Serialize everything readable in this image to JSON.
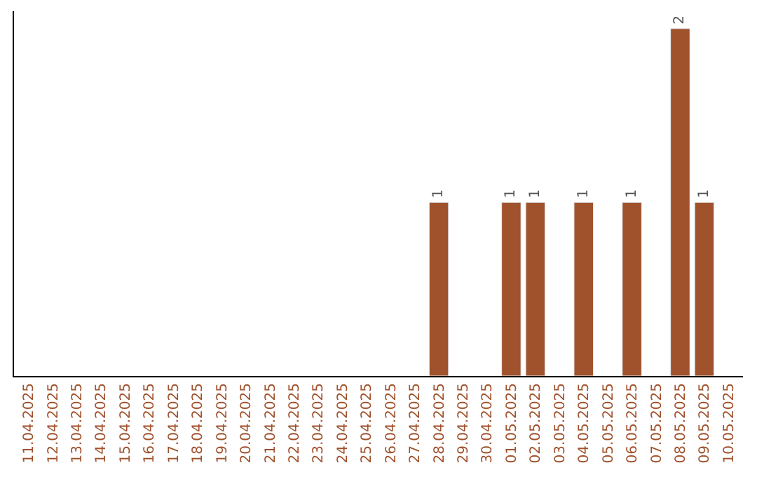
{
  "chart_data": {
    "type": "bar",
    "categories": [
      "11.04.2025",
      "12.04.2025",
      "13.04.2025",
      "14.04.2025",
      "15.04.2025",
      "16.04.2025",
      "17.04.2025",
      "18.04.2025",
      "19.04.2025",
      "20.04.2025",
      "21.04.2025",
      "22.04.2025",
      "23.04.2025",
      "24.04.2025",
      "25.04.2025",
      "26.04.2025",
      "27.04.2025",
      "28.04.2025",
      "29.04.2025",
      "30.04.2025",
      "01.05.2025",
      "02.05.2025",
      "03.05.2025",
      "04.05.2025",
      "05.05.2025",
      "06.05.2025",
      "07.05.2025",
      "08.05.2025",
      "09.05.2025",
      "10.05.2025"
    ],
    "values": [
      null,
      null,
      null,
      null,
      null,
      null,
      null,
      null,
      null,
      null,
      null,
      null,
      null,
      null,
      null,
      null,
      null,
      1,
      null,
      null,
      1,
      1,
      null,
      1,
      null,
      1,
      null,
      2,
      1,
      null
    ],
    "value_labels": [
      null,
      null,
      null,
      null,
      null,
      null,
      null,
      null,
      null,
      null,
      null,
      null,
      null,
      null,
      null,
      null,
      null,
      "1",
      null,
      null,
      "1",
      "1",
      null,
      "1",
      null,
      "1",
      null,
      "2",
      "1",
      null
    ],
    "color": "#a0522d",
    "ylim": [
      0,
      2.1
    ],
    "tick_labels": "x"
  }
}
